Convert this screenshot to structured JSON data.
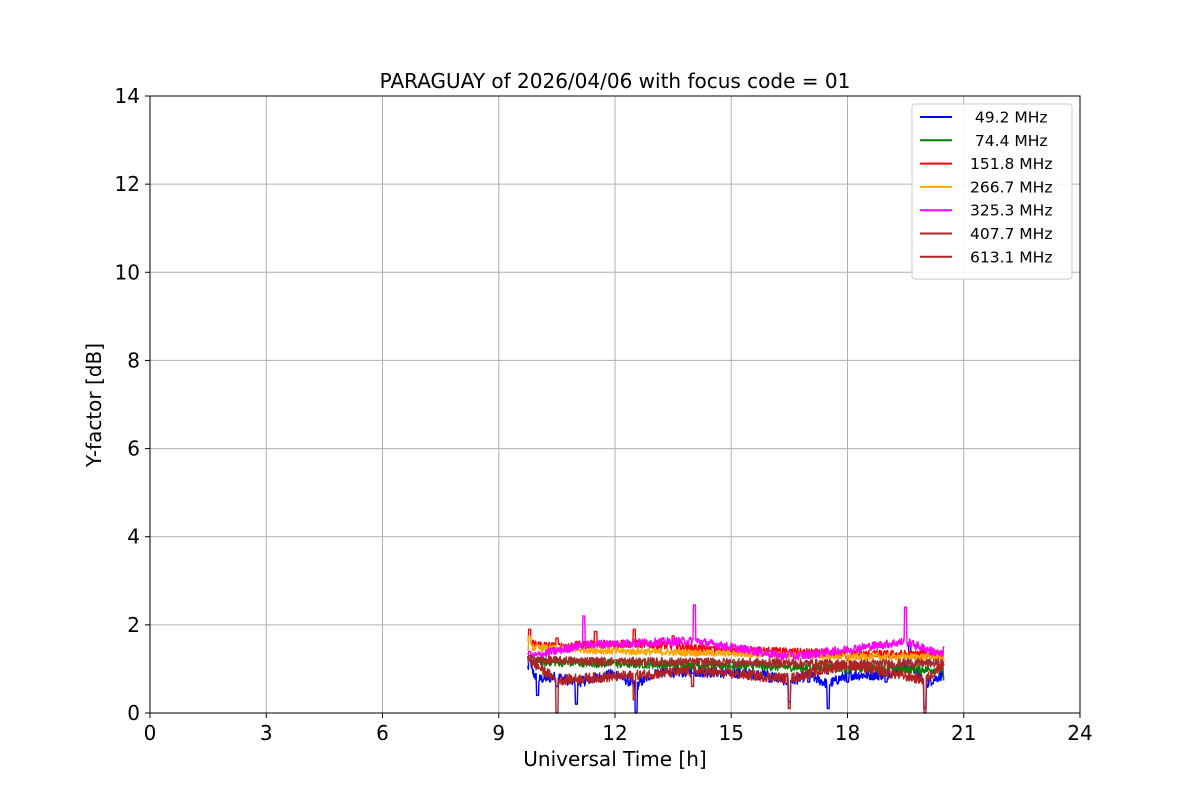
{
  "chart_data": {
    "type": "line",
    "title": "PARAGUAY of 2026/04/06 with focus code = 01",
    "xlabel": "Universal Time [h]",
    "ylabel": "Y-factor [dB]",
    "xlim": [
      0,
      24
    ],
    "ylim": [
      0,
      14
    ],
    "xticks": [
      0,
      3,
      6,
      9,
      12,
      15,
      18,
      21,
      24
    ],
    "yticks": [
      0,
      2,
      4,
      6,
      8,
      10,
      12,
      14
    ],
    "grid": true,
    "legend_position": "top-right",
    "data_range_hours": [
      9.75,
      20.5
    ],
    "series": [
      {
        "name": " 49.2 MHz",
        "color": "#0000ff",
        "base": 0.95,
        "noise": 0.18,
        "points": [
          [
            9.8,
            1.2
          ],
          [
            10.0,
            0.4
          ],
          [
            10.5,
            0.6
          ],
          [
            11.0,
            0.2
          ],
          [
            12.0,
            0.8
          ],
          [
            12.55,
            0.0
          ],
          [
            13.0,
            0.85
          ],
          [
            14.0,
            0.9
          ],
          [
            15.0,
            0.85
          ],
          [
            16.0,
            0.7
          ],
          [
            16.5,
            0.25
          ],
          [
            17.0,
            0.7
          ],
          [
            17.5,
            0.1
          ],
          [
            18.0,
            0.7
          ],
          [
            19.0,
            0.7
          ],
          [
            19.6,
            1.55
          ],
          [
            20.0,
            0.1
          ],
          [
            20.5,
            0.8
          ]
        ]
      },
      {
        "name": " 74.4 MHz",
        "color": "#008000",
        "base": 1.1,
        "noise": 0.15,
        "points": [
          [
            9.8,
            1.3
          ],
          [
            12.0,
            1.15
          ],
          [
            15.0,
            1.05
          ],
          [
            17.0,
            0.9
          ],
          [
            18.0,
            0.9
          ],
          [
            19.0,
            0.85
          ],
          [
            20.5,
            0.75
          ]
        ]
      },
      {
        "name": "151.8 MHz",
        "color": "#ff0000",
        "base": 1.4,
        "noise": 0.15,
        "points": [
          [
            9.8,
            1.9
          ],
          [
            10.5,
            1.7
          ],
          [
            11.5,
            1.85
          ],
          [
            12.5,
            1.9
          ],
          [
            13.5,
            1.75
          ],
          [
            14.5,
            1.5
          ],
          [
            16.0,
            1.4
          ],
          [
            18.0,
            1.2
          ],
          [
            20.5,
            1.2
          ]
        ]
      },
      {
        "name": "266.7 MHz",
        "color": "#ffa500",
        "base": 1.35,
        "noise": 0.12,
        "points": [
          [
            9.8,
            1.75
          ],
          [
            12.0,
            1.5
          ],
          [
            15.0,
            1.35
          ],
          [
            18.0,
            1.15
          ],
          [
            20.5,
            1.15
          ]
        ]
      },
      {
        "name": "325.3 MHz",
        "color": "#ff00ff",
        "base": 1.2,
        "noise": 0.15,
        "points": [
          [
            9.8,
            1.4
          ],
          [
            11.2,
            2.2
          ],
          [
            14.05,
            2.45
          ],
          [
            16.5,
            1.4
          ],
          [
            19.5,
            2.4
          ],
          [
            20.5,
            1.5
          ]
        ]
      },
      {
        "name": "407.7 MHz",
        "color": "#a52a2a",
        "base": 1.15,
        "noise": 0.15,
        "points": [
          [
            9.8,
            1.3
          ],
          [
            12.0,
            1.2
          ],
          [
            15.0,
            1.15
          ],
          [
            18.0,
            1.05
          ],
          [
            20.5,
            1.1
          ]
        ]
      },
      {
        "name": "613.1 MHz",
        "color": "#b22222",
        "base": 1.15,
        "noise": 0.18,
        "points": [
          [
            9.8,
            1.25
          ],
          [
            10.5,
            0.0
          ],
          [
            12.5,
            0.3
          ],
          [
            14.0,
            0.6
          ],
          [
            16.5,
            0.1
          ],
          [
            18.0,
            1.0
          ],
          [
            20.0,
            0.0
          ],
          [
            20.5,
            1.1
          ]
        ]
      }
    ]
  }
}
